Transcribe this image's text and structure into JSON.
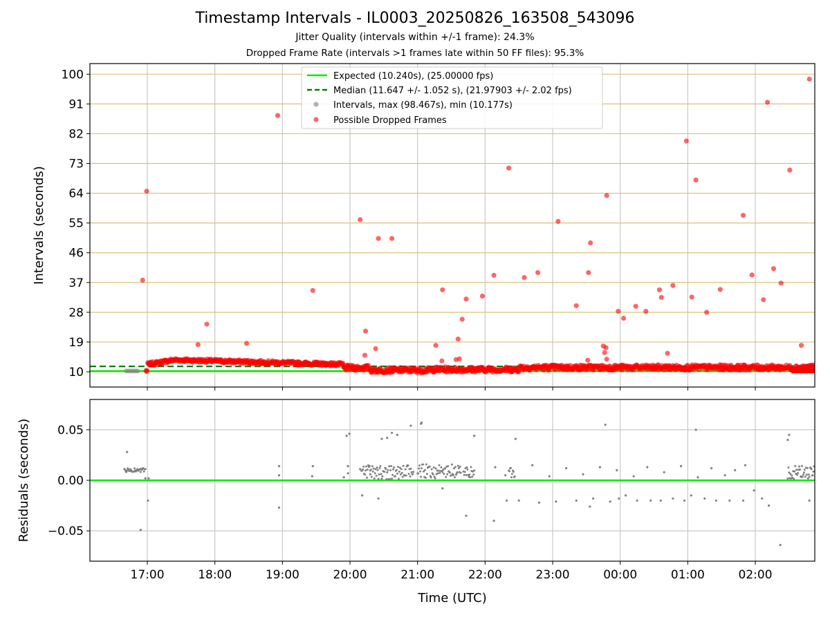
{
  "chart_data": [
    {
      "type": "scatter",
      "title": "Timestamp Intervals - IL0003_20250826_163508_543096",
      "subtitle_1": "Jitter Quality (intervals within +/-1 frame): 24.3%",
      "subtitle_2": "Dropped Frame Rate (intervals >1 frames late within 50 FF files): 95.3%",
      "xlabel": "",
      "ylabel": "Intervals (seconds)",
      "x_tick_labels": [
        "17:00",
        "18:00",
        "19:00",
        "20:00",
        "21:00",
        "22:00",
        "23:00",
        "00:00",
        "01:00",
        "02:00"
      ],
      "y_ticks": [
        10,
        19,
        28,
        37,
        46,
        55,
        64,
        73,
        82,
        91,
        100
      ],
      "ylim": [
        5.4,
        103.2
      ],
      "xlim_hours_utc": [
        16.15,
        26.88
      ],
      "grid": true,
      "legend_position": "top-center",
      "legend": [
        "Expected (10.240s), (25.00000 fps)",
        "Median (11.647 +/- 1.052 s), (21.97903 +/- 2.02 fps)",
        "Intervals, max (98.467s), min (10.177s)",
        "Possible Dropped Frames"
      ],
      "series": [
        {
          "name": "Expected (10.240s), (25.00000 fps)",
          "kind": "hline",
          "y": 10.24,
          "color": "#00ee00"
        },
        {
          "name": "Median (11.647 +/- 1.052 s), (21.97903 +/- 2.02 fps)",
          "kind": "hline-dashed",
          "y": 11.647,
          "color": "#008000"
        },
        {
          "name": "Possible Dropped Frames",
          "kind": "scatter",
          "color": "#ff0000",
          "points": [
            [
              16.93,
              37.7
            ],
            [
              16.99,
              64.6
            ],
            [
              17.75,
              18.2
            ],
            [
              17.88,
              24.4
            ],
            [
              18.47,
              18.6
            ],
            [
              18.93,
              87.5
            ],
            [
              19.45,
              34.6
            ],
            [
              20.15,
              56.0
            ],
            [
              20.22,
              15.0
            ],
            [
              20.23,
              22.3
            ],
            [
              20.38,
              17.0
            ],
            [
              20.42,
              50.3
            ],
            [
              20.62,
              50.3
            ],
            [
              21.27,
              18.0
            ],
            [
              21.36,
              13.3
            ],
            [
              21.37,
              34.8
            ],
            [
              21.57,
              13.7
            ],
            [
              21.6,
              19.9
            ],
            [
              21.62,
              13.9
            ],
            [
              21.66,
              25.9
            ],
            [
              21.72,
              32.0
            ],
            [
              21.96,
              32.9
            ],
            [
              22.13,
              39.2
            ],
            [
              22.35,
              71.6
            ],
            [
              22.58,
              38.5
            ],
            [
              22.78,
              40.0
            ],
            [
              23.08,
              55.5
            ],
            [
              23.35,
              30.0
            ],
            [
              23.52,
              13.5
            ],
            [
              23.53,
              40.0
            ],
            [
              23.56,
              49.0
            ],
            [
              23.75,
              17.8
            ],
            [
              23.77,
              15.8
            ],
            [
              23.79,
              17.3
            ],
            [
              23.8,
              63.3
            ],
            [
              23.8,
              13.8
            ],
            [
              23.97,
              28.3
            ],
            [
              24.05,
              26.2
            ],
            [
              24.23,
              29.8
            ],
            [
              24.38,
              28.3
            ],
            [
              24.58,
              34.8
            ],
            [
              24.61,
              32.5
            ],
            [
              24.7,
              15.6
            ],
            [
              24.78,
              36.1
            ],
            [
              24.98,
              79.8
            ],
            [
              25.06,
              32.6
            ],
            [
              25.12,
              68.0
            ],
            [
              25.28,
              28.0
            ],
            [
              25.48,
              34.9
            ],
            [
              25.82,
              57.3
            ],
            [
              25.95,
              39.3
            ],
            [
              26.12,
              31.8
            ],
            [
              26.18,
              91.5
            ],
            [
              26.27,
              41.2
            ],
            [
              26.38,
              36.8
            ],
            [
              26.51,
              71.0
            ],
            [
              26.68,
              18.0
            ],
            [
              26.8,
              98.5
            ]
          ]
        },
        {
          "name": "Intervals, max (98.467s), min (10.177s)",
          "kind": "scatter",
          "color": "#808080",
          "points": [
            [
              16.69,
              10.24
            ],
            [
              16.73,
              10.24
            ],
            [
              16.77,
              10.24
            ],
            [
              16.81,
              10.24
            ],
            [
              16.85,
              10.24
            ]
          ]
        }
      ]
    },
    {
      "type": "scatter",
      "xlabel": "Time (UTC)",
      "ylabel": "Residuals (seconds)",
      "y_tick_labels": [
        "0.05",
        "0.00",
        "−0.05"
      ],
      "y_ticks": [
        0.05,
        0.0,
        -0.05
      ],
      "ylim": [
        -0.08,
        0.08
      ],
      "grid": true,
      "series": [
        {
          "name": "",
          "kind": "hline",
          "y": 0.0,
          "color": "#00ee00"
        },
        {
          "name": "",
          "kind": "scatter",
          "color": "#808080",
          "points": [
            [
              16.7,
              0.028
            ],
            [
              16.9,
              -0.049
            ],
            [
              17.01,
              -0.02
            ],
            [
              17.02,
              0.002
            ],
            [
              16.97,
              0.002
            ],
            [
              18.95,
              0.014
            ],
            [
              18.95,
              0.005
            ],
            [
              18.95,
              -0.027
            ],
            [
              19.45,
              0.014
            ],
            [
              19.44,
              0.004
            ],
            [
              19.91,
              0.003
            ],
            [
              19.95,
              0.044
            ],
            [
              19.99,
              0.046
            ],
            [
              19.97,
              0.014
            ],
            [
              19.97,
              0.007
            ],
            [
              20.18,
              -0.015
            ],
            [
              20.42,
              -0.018
            ],
            [
              20.47,
              0.041
            ],
            [
              20.55,
              0.042
            ],
            [
              20.62,
              0.047
            ],
            [
              20.7,
              0.045
            ],
            [
              20.9,
              0.054
            ],
            [
              21.05,
              0.056
            ],
            [
              21.06,
              0.057
            ],
            [
              21.37,
              -0.008
            ],
            [
              21.72,
              -0.035
            ],
            [
              21.84,
              0.044
            ],
            [
              22.13,
              -0.04
            ],
            [
              22.32,
              -0.02
            ],
            [
              22.45,
              0.041
            ],
            [
              22.5,
              -0.02
            ],
            [
              22.8,
              -0.022
            ],
            [
              23.05,
              -0.021
            ],
            [
              23.35,
              -0.02
            ],
            [
              23.55,
              -0.026
            ],
            [
              23.6,
              -0.018
            ],
            [
              23.78,
              0.055
            ],
            [
              23.85,
              -0.021
            ],
            [
              23.98,
              -0.018
            ],
            [
              24.08,
              -0.015
            ],
            [
              24.25,
              -0.02
            ],
            [
              24.45,
              -0.02
            ],
            [
              24.6,
              -0.02
            ],
            [
              24.78,
              -0.018
            ],
            [
              24.95,
              -0.02
            ],
            [
              25.05,
              -0.015
            ],
            [
              25.12,
              0.05
            ],
            [
              25.25,
              -0.018
            ],
            [
              25.42,
              -0.02
            ],
            [
              25.62,
              -0.02
            ],
            [
              25.82,
              -0.02
            ],
            [
              25.98,
              -0.01
            ],
            [
              26.1,
              -0.018
            ],
            [
              26.2,
              -0.025
            ],
            [
              26.37,
              -0.064
            ],
            [
              26.5,
              0.045
            ],
            [
              26.48,
              0.04
            ],
            [
              26.8,
              -0.02
            ],
            [
              25.85,
              0.015
            ],
            [
              25.7,
              0.01
            ],
            [
              25.55,
              0.005
            ],
            [
              25.35,
              0.012
            ],
            [
              25.15,
              0.003
            ],
            [
              24.9,
              0.014
            ],
            [
              24.65,
              0.008
            ],
            [
              24.4,
              0.013
            ],
            [
              24.2,
              0.004
            ],
            [
              23.95,
              0.01
            ],
            [
              23.7,
              0.013
            ],
            [
              23.45,
              0.006
            ],
            [
              23.2,
              0.012
            ],
            [
              22.95,
              0.004
            ],
            [
              22.7,
              0.015
            ],
            [
              22.3,
              0.005
            ],
            [
              22.15,
              0.013
            ],
            [
              20.15,
              0.011
            ],
            [
              20.3,
              0.006
            ]
          ]
        }
      ]
    }
  ]
}
